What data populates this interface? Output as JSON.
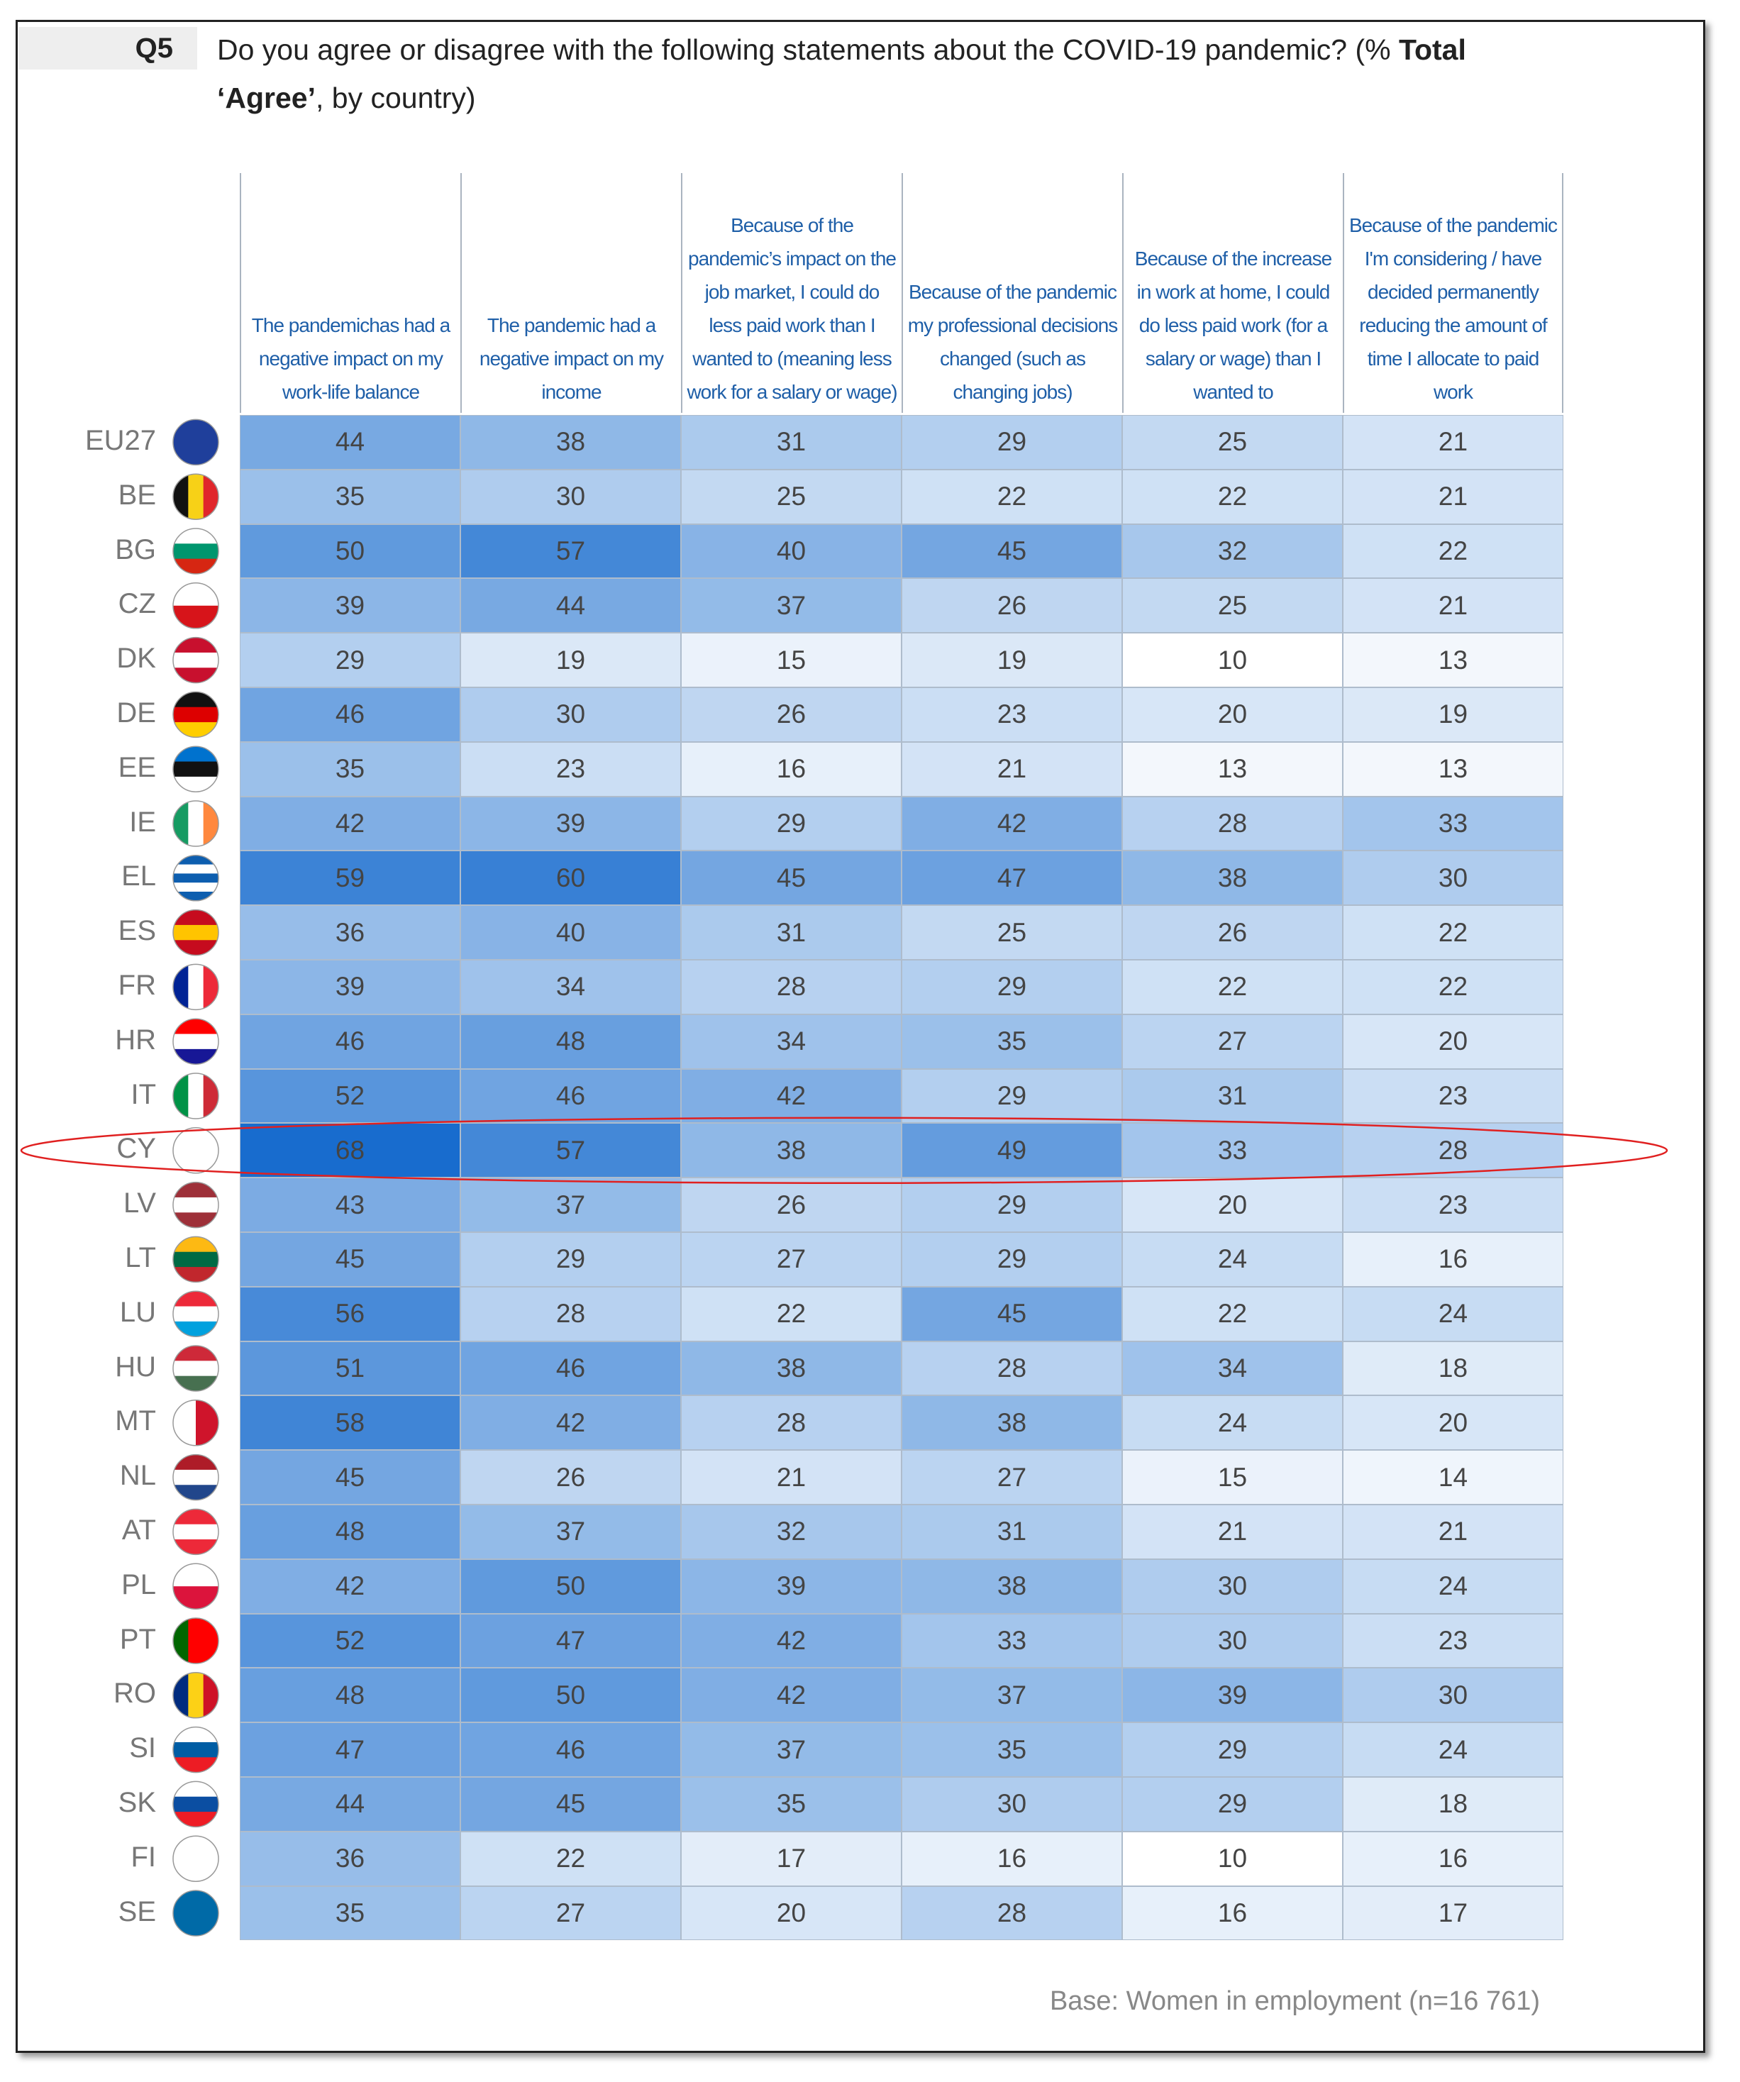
{
  "question": {
    "label": "Q5",
    "title_start": "Do you agree or disagree with the following statements about the COVID-19 pandemic? (%",
    "title_bold": "Total ‘Agree’",
    "title_end": ", by country)"
  },
  "table": {
    "columns": [
      "The pandemichas had a negative impact on my work-life balance",
      "The pandemic had a negative impact on my income",
      "Because of the pandemic’s impact on the job market, I could do less paid work than I wanted to (meaning less work for a salary or wage)",
      "Because of the pandemic my professional decisions changed (such as changing jobs)",
      "Because of the increase in work at home, I could do less paid work (for a salary or wage) than I wanted to",
      "Because of the pandemic I'm considering / have decided permanently reducing the amount of time I allocate to paid work"
    ],
    "rows": [
      {
        "country": "EU27",
        "values": [
          44,
          38,
          31,
          29,
          25,
          21
        ]
      },
      {
        "country": "BE",
        "values": [
          35,
          30,
          25,
          22,
          22,
          21
        ]
      },
      {
        "country": "BG",
        "values": [
          50,
          57,
          40,
          45,
          32,
          22
        ]
      },
      {
        "country": "CZ",
        "values": [
          39,
          44,
          37,
          26,
          25,
          21
        ]
      },
      {
        "country": "DK",
        "values": [
          29,
          19,
          15,
          19,
          10,
          13
        ]
      },
      {
        "country": "DE",
        "values": [
          46,
          30,
          26,
          23,
          20,
          19
        ]
      },
      {
        "country": "EE",
        "values": [
          35,
          23,
          16,
          21,
          13,
          13
        ]
      },
      {
        "country": "IE",
        "values": [
          42,
          39,
          29,
          42,
          28,
          33
        ]
      },
      {
        "country": "EL",
        "values": [
          59,
          60,
          45,
          47,
          38,
          30
        ]
      },
      {
        "country": "ES",
        "values": [
          36,
          40,
          31,
          25,
          26,
          22
        ]
      },
      {
        "country": "FR",
        "values": [
          39,
          34,
          28,
          29,
          22,
          22
        ]
      },
      {
        "country": "HR",
        "values": [
          46,
          48,
          34,
          35,
          27,
          20
        ]
      },
      {
        "country": "IT",
        "values": [
          52,
          46,
          42,
          29,
          31,
          23
        ]
      },
      {
        "country": "CY",
        "values": [
          68,
          57,
          38,
          49,
          33,
          28
        ]
      },
      {
        "country": "LV",
        "values": [
          43,
          37,
          26,
          29,
          20,
          23
        ]
      },
      {
        "country": "LT",
        "values": [
          45,
          29,
          27,
          29,
          24,
          16
        ]
      },
      {
        "country": "LU",
        "values": [
          56,
          28,
          22,
          45,
          22,
          24
        ]
      },
      {
        "country": "HU",
        "values": [
          51,
          46,
          38,
          28,
          34,
          18
        ]
      },
      {
        "country": "MT",
        "values": [
          58,
          42,
          28,
          38,
          24,
          20
        ]
      },
      {
        "country": "NL",
        "values": [
          45,
          26,
          21,
          27,
          15,
          14
        ]
      },
      {
        "country": "AT",
        "values": [
          48,
          37,
          32,
          31,
          21,
          21
        ]
      },
      {
        "country": "PL",
        "values": [
          42,
          50,
          39,
          38,
          30,
          24
        ]
      },
      {
        "country": "PT",
        "values": [
          52,
          47,
          42,
          33,
          30,
          23
        ]
      },
      {
        "country": "RO",
        "values": [
          48,
          50,
          42,
          37,
          39,
          30
        ]
      },
      {
        "country": "SI",
        "values": [
          47,
          46,
          37,
          35,
          29,
          24
        ]
      },
      {
        "country": "SK",
        "values": [
          44,
          45,
          35,
          30,
          29,
          18
        ]
      },
      {
        "country": "FI",
        "values": [
          36,
          22,
          17,
          16,
          10,
          16
        ]
      },
      {
        "country": "SE",
        "values": [
          35,
          27,
          20,
          28,
          16,
          17
        ]
      }
    ]
  },
  "base_note": "Base: Women in employment (n=16 761)"
}
